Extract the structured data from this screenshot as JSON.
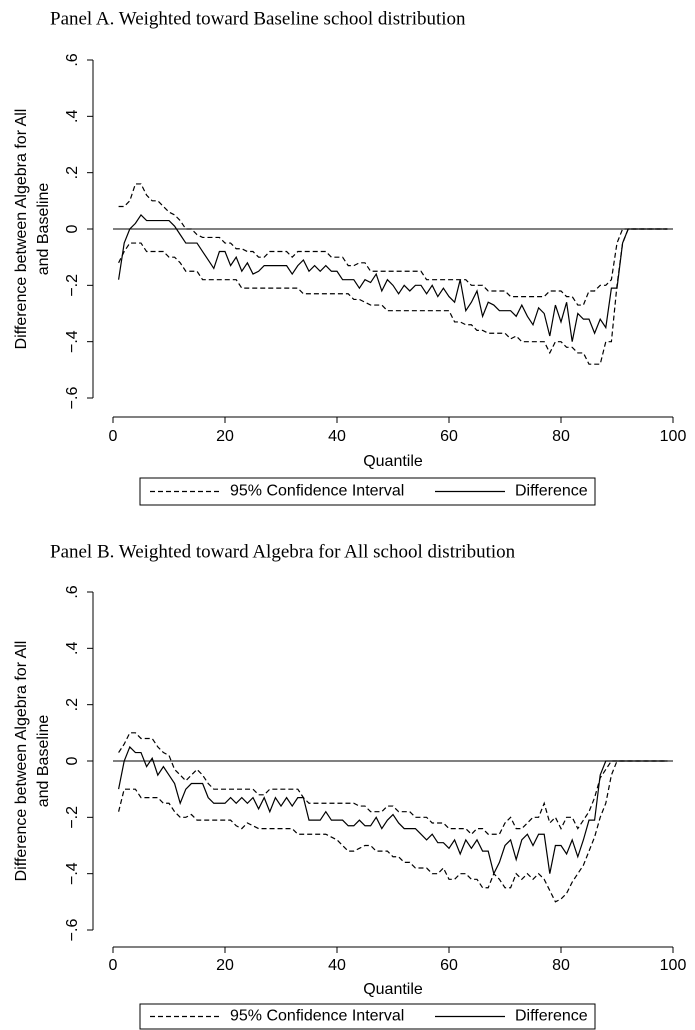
{
  "chart_data": [
    {
      "type": "line",
      "title": "Panel A. Weighted toward Baseline school distribution",
      "xlabel": "Quantile",
      "ylabel": [
        "Difference between Algebra for All",
        "and Baseline"
      ],
      "xlim": [
        0,
        100
      ],
      "xticks": [
        0,
        20,
        40,
        60,
        80,
        100
      ],
      "ylim": [
        -0.6,
        0.6
      ],
      "yticks": [
        {
          "value": -0.6,
          "label": "−.6"
        },
        {
          "value": -0.4,
          "label": "−.4"
        },
        {
          "value": -0.2,
          "label": "−.2"
        },
        0,
        {
          "value": 0.2,
          "label": ".2"
        },
        {
          "value": 0.4,
          "label": ".4"
        },
        {
          "value": 0.6,
          "label": ".6"
        }
      ],
      "reference_line": 0,
      "x": [
        1,
        2,
        3,
        4,
        5,
        6,
        7,
        8,
        9,
        10,
        11,
        12,
        13,
        14,
        15,
        16,
        17,
        18,
        19,
        20,
        21,
        22,
        23,
        24,
        25,
        26,
        27,
        28,
        29,
        30,
        31,
        32,
        33,
        34,
        35,
        36,
        37,
        38,
        39,
        40,
        41,
        42,
        43,
        44,
        45,
        46,
        47,
        48,
        49,
        50,
        51,
        52,
        53,
        54,
        55,
        56,
        57,
        58,
        59,
        60,
        61,
        62,
        63,
        64,
        65,
        66,
        67,
        68,
        69,
        70,
        71,
        72,
        73,
        74,
        75,
        76,
        77,
        78,
        79,
        80,
        81,
        82,
        83,
        84,
        85,
        86,
        87,
        88,
        89,
        90,
        91,
        92,
        93,
        94,
        95,
        96,
        97,
        98,
        99
      ],
      "series": [
        {
          "name": "95% Confidence Interval",
          "color": "#000000",
          "dashed": true,
          "lower": [
            -0.12,
            -0.08,
            -0.05,
            -0.05,
            -0.05,
            -0.08,
            -0.08,
            -0.08,
            -0.08,
            -0.1,
            -0.1,
            -0.12,
            -0.15,
            -0.15,
            -0.15,
            -0.18,
            -0.18,
            -0.18,
            -0.18,
            -0.18,
            -0.18,
            -0.18,
            -0.21,
            -0.21,
            -0.21,
            -0.21,
            -0.21,
            -0.21,
            -0.21,
            -0.21,
            -0.21,
            -0.21,
            -0.21,
            -0.23,
            -0.23,
            -0.23,
            -0.23,
            -0.23,
            -0.23,
            -0.23,
            -0.23,
            -0.23,
            -0.25,
            -0.25,
            -0.26,
            -0.27,
            -0.27,
            -0.27,
            -0.29,
            -0.29,
            -0.29,
            -0.29,
            -0.29,
            -0.29,
            -0.29,
            -0.29,
            -0.29,
            -0.29,
            -0.29,
            -0.29,
            -0.33,
            -0.33,
            -0.34,
            -0.34,
            -0.36,
            -0.36,
            -0.37,
            -0.37,
            -0.37,
            -0.37,
            -0.39,
            -0.38,
            -0.4,
            -0.4,
            -0.4,
            -0.4,
            -0.4,
            -0.44,
            -0.4,
            -0.4,
            -0.42,
            -0.42,
            -0.44,
            -0.44,
            -0.48,
            -0.48,
            -0.48,
            -0.4,
            -0.4,
            -0.2,
            -0.05,
            0,
            0,
            0,
            0,
            0,
            0,
            0,
            0
          ],
          "upper": [
            0.08,
            0.08,
            0.1,
            0.16,
            0.16,
            0.12,
            0.1,
            0.1,
            0.08,
            0.06,
            0.05,
            0.03,
            0,
            0,
            -0.02,
            -0.03,
            -0.03,
            -0.03,
            -0.03,
            -0.05,
            -0.05,
            -0.07,
            -0.07,
            -0.08,
            -0.08,
            -0.1,
            -0.1,
            -0.08,
            -0.08,
            -0.08,
            -0.08,
            -0.1,
            -0.08,
            -0.08,
            -0.08,
            -0.08,
            -0.08,
            -0.08,
            -0.1,
            -0.1,
            -0.1,
            -0.13,
            -0.13,
            -0.12,
            -0.12,
            -0.15,
            -0.15,
            -0.15,
            -0.15,
            -0.15,
            -0.15,
            -0.15,
            -0.15,
            -0.15,
            -0.15,
            -0.18,
            -0.18,
            -0.18,
            -0.18,
            -0.18,
            -0.18,
            -0.18,
            -0.18,
            -0.2,
            -0.2,
            -0.2,
            -0.22,
            -0.22,
            -0.22,
            -0.22,
            -0.24,
            -0.24,
            -0.24,
            -0.24,
            -0.24,
            -0.24,
            -0.24,
            -0.22,
            -0.22,
            -0.22,
            -0.24,
            -0.24,
            -0.27,
            -0.27,
            -0.22,
            -0.22,
            -0.2,
            -0.2,
            -0.18,
            -0.05,
            0,
            0,
            0,
            0,
            0,
            0,
            0,
            0,
            0
          ]
        },
        {
          "name": "Difference",
          "color": "#000000",
          "dashed": false,
          "values": [
            -0.18,
            -0.05,
            0,
            0.02,
            0.05,
            0.03,
            0.03,
            0.03,
            0.03,
            0.03,
            0.01,
            -0.02,
            -0.05,
            -0.05,
            -0.05,
            -0.08,
            -0.11,
            -0.14,
            -0.08,
            -0.08,
            -0.13,
            -0.1,
            -0.15,
            -0.12,
            -0.16,
            -0.15,
            -0.13,
            -0.13,
            -0.13,
            -0.13,
            -0.13,
            -0.16,
            -0.13,
            -0.11,
            -0.15,
            -0.13,
            -0.15,
            -0.13,
            -0.15,
            -0.15,
            -0.18,
            -0.18,
            -0.18,
            -0.21,
            -0.18,
            -0.19,
            -0.16,
            -0.22,
            -0.18,
            -0.2,
            -0.23,
            -0.2,
            -0.22,
            -0.2,
            -0.2,
            -0.23,
            -0.2,
            -0.24,
            -0.21,
            -0.24,
            -0.26,
            -0.18,
            -0.29,
            -0.26,
            -0.22,
            -0.31,
            -0.26,
            -0.27,
            -0.29,
            -0.29,
            -0.29,
            -0.31,
            -0.27,
            -0.31,
            -0.34,
            -0.28,
            -0.3,
            -0.38,
            -0.27,
            -0.33,
            -0.26,
            -0.4,
            -0.3,
            -0.32,
            -0.32,
            -0.37,
            -0.32,
            -0.35,
            -0.21,
            -0.21,
            -0.05,
            0,
            0,
            0,
            0,
            0,
            0,
            0,
            0
          ]
        }
      ]
    },
    {
      "type": "line",
      "title": "Panel B. Weighted toward Algebra for All school distribution",
      "xlabel": "Quantile",
      "ylabel": [
        "Difference between Algebra for All",
        "and Baseline"
      ],
      "xlim": [
        0,
        100
      ],
      "xticks": [
        0,
        20,
        40,
        60,
        80,
        100
      ],
      "ylim": [
        -0.6,
        0.6
      ],
      "yticks": [
        {
          "value": -0.6,
          "label": "−.6"
        },
        {
          "value": -0.4,
          "label": "−.4"
        },
        {
          "value": -0.2,
          "label": "−.2"
        },
        0,
        {
          "value": 0.2,
          "label": ".2"
        },
        {
          "value": 0.4,
          "label": ".4"
        },
        {
          "value": 0.6,
          "label": ".6"
        }
      ],
      "reference_line": 0,
      "x": [
        1,
        2,
        3,
        4,
        5,
        6,
        7,
        8,
        9,
        10,
        11,
        12,
        13,
        14,
        15,
        16,
        17,
        18,
        19,
        20,
        21,
        22,
        23,
        24,
        25,
        26,
        27,
        28,
        29,
        30,
        31,
        32,
        33,
        34,
        35,
        36,
        37,
        38,
        39,
        40,
        41,
        42,
        43,
        44,
        45,
        46,
        47,
        48,
        49,
        50,
        51,
        52,
        53,
        54,
        55,
        56,
        57,
        58,
        59,
        60,
        61,
        62,
        63,
        64,
        65,
        66,
        67,
        68,
        69,
        70,
        71,
        72,
        73,
        74,
        75,
        76,
        77,
        78,
        79,
        80,
        81,
        82,
        83,
        84,
        85,
        86,
        87,
        88,
        89,
        90,
        91,
        92,
        93,
        94,
        95,
        96,
        97,
        98,
        99
      ],
      "series": [
        {
          "name": "95% Confidence Interval",
          "color": "#000000",
          "dashed": true,
          "lower": [
            -0.18,
            -0.1,
            -0.1,
            -0.1,
            -0.13,
            -0.13,
            -0.13,
            -0.13,
            -0.15,
            -0.15,
            -0.18,
            -0.2,
            -0.2,
            -0.19,
            -0.21,
            -0.21,
            -0.21,
            -0.21,
            -0.21,
            -0.21,
            -0.21,
            -0.23,
            -0.24,
            -0.22,
            -0.23,
            -0.24,
            -0.24,
            -0.24,
            -0.24,
            -0.24,
            -0.24,
            -0.24,
            -0.26,
            -0.26,
            -0.26,
            -0.26,
            -0.26,
            -0.26,
            -0.27,
            -0.28,
            -0.3,
            -0.32,
            -0.32,
            -0.31,
            -0.3,
            -0.3,
            -0.32,
            -0.32,
            -0.32,
            -0.34,
            -0.34,
            -0.36,
            -0.36,
            -0.38,
            -0.38,
            -0.38,
            -0.4,
            -0.4,
            -0.38,
            -0.42,
            -0.42,
            -0.4,
            -0.4,
            -0.42,
            -0.42,
            -0.45,
            -0.45,
            -0.4,
            -0.42,
            -0.45,
            -0.45,
            -0.4,
            -0.42,
            -0.4,
            -0.42,
            -0.4,
            -0.42,
            -0.46,
            -0.5,
            -0.49,
            -0.47,
            -0.43,
            -0.4,
            -0.37,
            -0.32,
            -0.27,
            -0.2,
            -0.15,
            -0.05,
            0,
            0,
            0,
            0,
            0,
            0,
            0,
            0,
            0,
            0
          ],
          "upper": [
            0.03,
            0.06,
            0.1,
            0.1,
            0.08,
            0.08,
            0.08,
            0.05,
            0.03,
            0.02,
            -0.03,
            -0.05,
            -0.07,
            -0.05,
            -0.03,
            -0.05,
            -0.08,
            -0.1,
            -0.1,
            -0.1,
            -0.1,
            -0.1,
            -0.1,
            -0.1,
            -0.1,
            -0.12,
            -0.12,
            -0.1,
            -0.1,
            -0.1,
            -0.1,
            -0.1,
            -0.1,
            -0.13,
            -0.15,
            -0.15,
            -0.15,
            -0.15,
            -0.15,
            -0.15,
            -0.15,
            -0.15,
            -0.15,
            -0.16,
            -0.16,
            -0.18,
            -0.18,
            -0.18,
            -0.16,
            -0.16,
            -0.18,
            -0.18,
            -0.18,
            -0.2,
            -0.2,
            -0.2,
            -0.22,
            -0.22,
            -0.22,
            -0.24,
            -0.24,
            -0.24,
            -0.24,
            -0.26,
            -0.24,
            -0.24,
            -0.26,
            -0.26,
            -0.26,
            -0.22,
            -0.2,
            -0.24,
            -0.24,
            -0.22,
            -0.2,
            -0.2,
            -0.15,
            -0.22,
            -0.2,
            -0.24,
            -0.2,
            -0.2,
            -0.24,
            -0.21,
            -0.18,
            -0.13,
            -0.06,
            -0.03,
            0,
            0,
            0,
            0,
            0,
            0,
            0,
            0,
            0,
            0,
            0
          ]
        },
        {
          "name": "Difference",
          "color": "#000000",
          "dashed": false,
          "values": [
            -0.1,
            0,
            0.05,
            0.03,
            0.03,
            -0.02,
            0.01,
            -0.05,
            -0.02,
            -0.05,
            -0.08,
            -0.15,
            -0.1,
            -0.08,
            -0.08,
            -0.08,
            -0.13,
            -0.15,
            -0.15,
            -0.15,
            -0.13,
            -0.15,
            -0.13,
            -0.15,
            -0.13,
            -0.17,
            -0.13,
            -0.18,
            -0.13,
            -0.16,
            -0.13,
            -0.16,
            -0.13,
            -0.13,
            -0.21,
            -0.21,
            -0.21,
            -0.18,
            -0.21,
            -0.21,
            -0.21,
            -0.23,
            -0.23,
            -0.21,
            -0.23,
            -0.23,
            -0.2,
            -0.24,
            -0.21,
            -0.19,
            -0.22,
            -0.24,
            -0.24,
            -0.24,
            -0.26,
            -0.28,
            -0.26,
            -0.29,
            -0.29,
            -0.31,
            -0.28,
            -0.33,
            -0.28,
            -0.31,
            -0.28,
            -0.32,
            -0.32,
            -0.4,
            -0.36,
            -0.3,
            -0.28,
            -0.35,
            -0.28,
            -0.26,
            -0.3,
            -0.26,
            -0.26,
            -0.4,
            -0.3,
            -0.3,
            -0.33,
            -0.28,
            -0.34,
            -0.28,
            -0.21,
            -0.21,
            -0.05,
            0,
            0,
            0,
            0,
            0,
            0,
            0,
            0,
            0,
            0,
            0,
            0
          ]
        }
      ]
    }
  ]
}
